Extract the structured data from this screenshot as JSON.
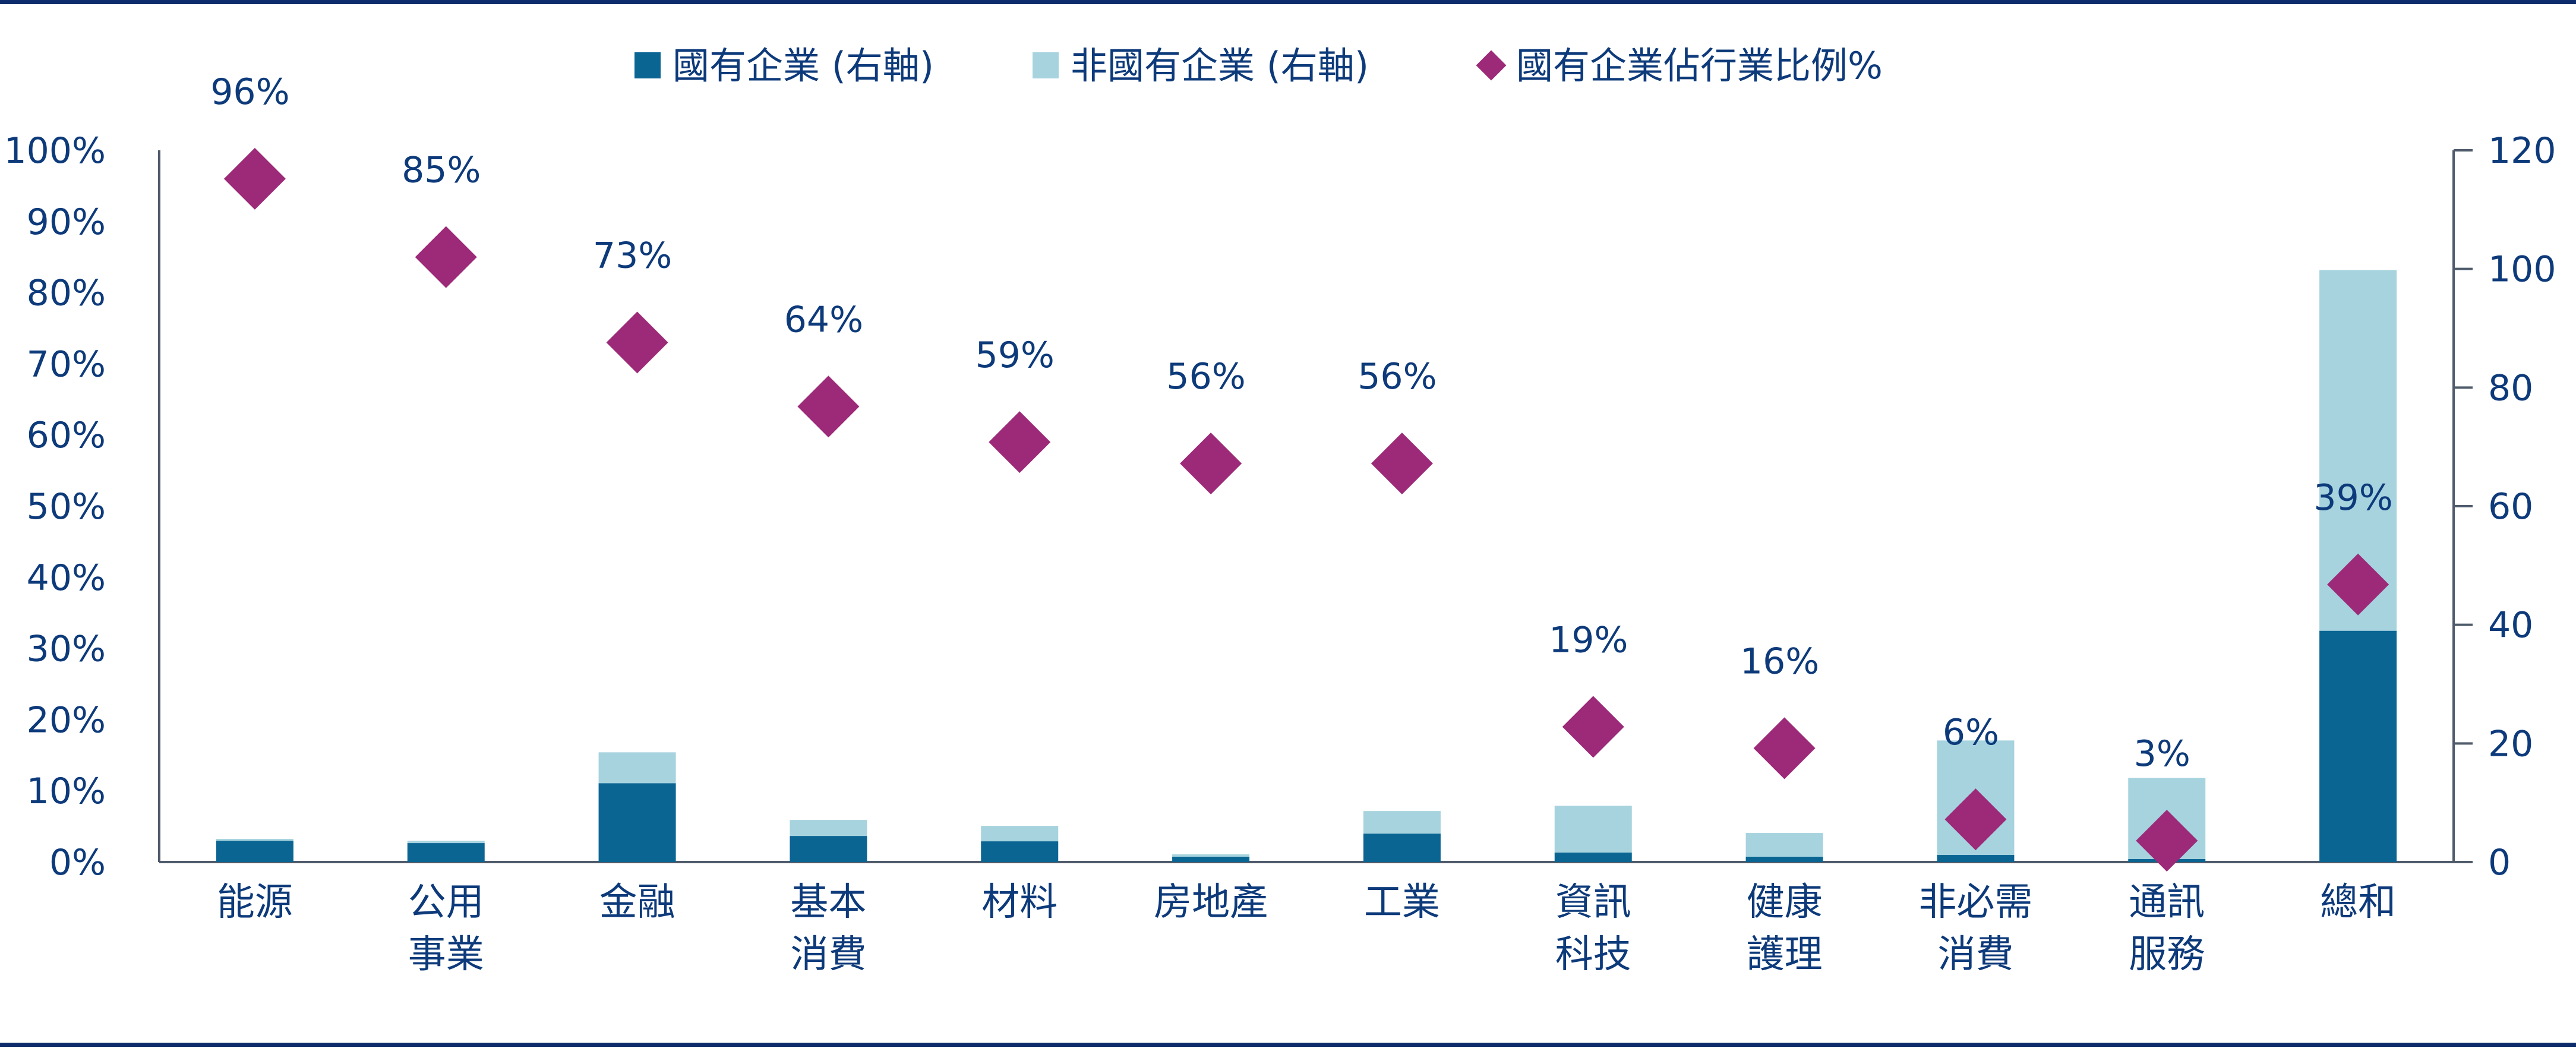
{
  "colors": {
    "soe": "#0a6593",
    "non_soe": "#a6d3de",
    "ratio": "#9c2a78",
    "text": "#0d3a7a",
    "axis": "#4f5b6b",
    "rule": "#0d2c6b"
  },
  "legend": [
    {
      "label": "國有企業 (右軸)",
      "marker": "square",
      "color_key": "soe"
    },
    {
      "label": "非國有企業 (右軸)",
      "marker": "square",
      "color_key": "non_soe"
    },
    {
      "label": "國有企業佔行業比例%",
      "marker": "diamond",
      "color_key": "ratio"
    }
  ],
  "chart_data": {
    "type": "bar",
    "stacked": true,
    "categories": [
      [
        "能源"
      ],
      [
        "公用",
        "事業"
      ],
      [
        "金融"
      ],
      [
        "基本",
        "消費"
      ],
      [
        "材料"
      ],
      [
        "房地產"
      ],
      [
        "工業"
      ],
      [
        "資訊",
        "科技"
      ],
      [
        "健康",
        "護理"
      ],
      [
        "非必需",
        "消費"
      ],
      [
        "通訊",
        "服務"
      ],
      [
        "總和"
      ]
    ],
    "series": [
      {
        "name": "國有企業 (右軸)",
        "axis": "right",
        "color_key": "soe",
        "values": [
          3.6,
          3.2,
          13.3,
          4.4,
          3.5,
          0.9,
          4.8,
          1.6,
          0.9,
          1.2,
          0.5,
          39
        ]
      },
      {
        "name": "非國有企業 (右軸)",
        "axis": "right",
        "color_key": "non_soe",
        "values": [
          0.3,
          0.4,
          5.2,
          2.7,
          2.6,
          0.4,
          3.8,
          7.9,
          4.0,
          19.3,
          13.7,
          60.8
        ]
      },
      {
        "name": "國有企業佔行業比例%",
        "axis": "left",
        "type": "scatter",
        "marker": "diamond",
        "color_key": "ratio",
        "values": [
          96,
          85,
          73,
          64,
          59,
          56,
          56,
          19,
          16,
          6,
          3,
          39
        ]
      }
    ],
    "data_labels": [
      "96%",
      "85%",
      "73%",
      "64%",
      "59%",
      "56%",
      "56%",
      "19%",
      "16%",
      "6%",
      "3%",
      "39%"
    ],
    "left_axis": {
      "ylim": [
        0,
        100
      ],
      "ticks": [
        "0%",
        "10%",
        "20%",
        "30%",
        "40%",
        "50%",
        "60%",
        "70%",
        "80%",
        "90%",
        "100%"
      ]
    },
    "right_axis": {
      "ylim": [
        0,
        120
      ],
      "ticks": [
        "0",
        "20",
        "40",
        "60",
        "80",
        "100",
        "120"
      ]
    },
    "legend_position": "top-center",
    "grid": false
  }
}
